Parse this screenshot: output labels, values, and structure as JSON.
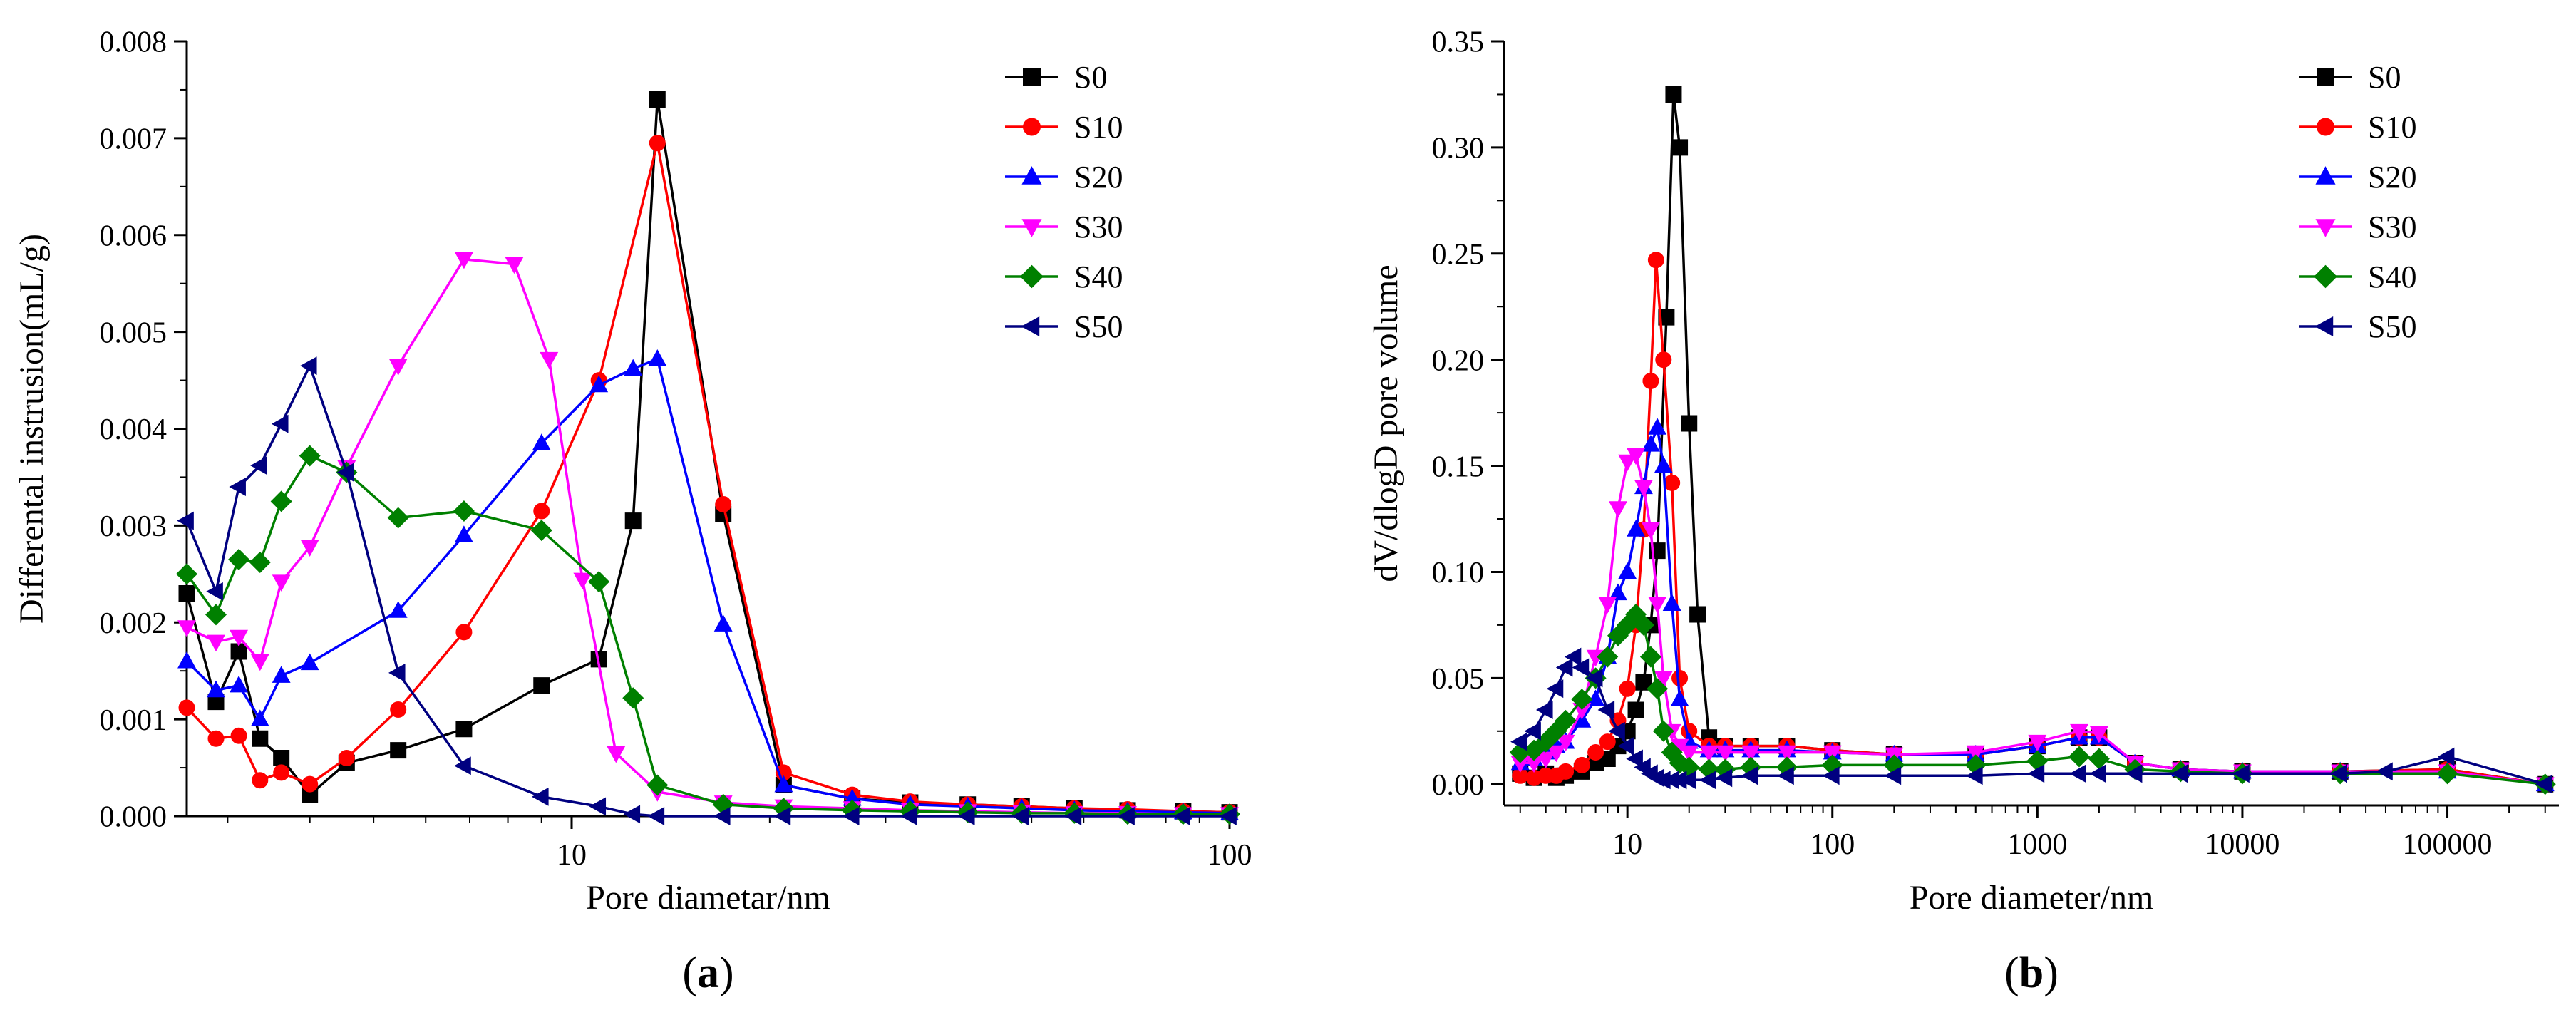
{
  "chart_data": [
    {
      "type": "line",
      "panel_label": "(a)",
      "panel_letter": "a",
      "xlabel": "Pore diametar/nm",
      "ylabel": "Differental instrusion(mL/g)",
      "xscale": "log",
      "xlim": [
        2.6,
        100
      ],
      "ylim": [
        0,
        0.008
      ],
      "xticks": [
        {
          "value": 10,
          "label": "10"
        },
        {
          "value": 100,
          "label": "100"
        }
      ],
      "yticks": [
        {
          "value": 0,
          "label": "0.000"
        },
        {
          "value": 0.001,
          "label": "0.001"
        },
        {
          "value": 0.002,
          "label": "0.002"
        },
        {
          "value": 0.003,
          "label": "0.003"
        },
        {
          "value": 0.004,
          "label": "0.004"
        },
        {
          "value": 0.005,
          "label": "0.005"
        },
        {
          "value": 0.006,
          "label": "0.006"
        },
        {
          "value": 0.007,
          "label": "0.007"
        },
        {
          "value": 0.008,
          "label": "0.008"
        }
      ],
      "legend_position": "top-right",
      "series": [
        {
          "name": "S0",
          "color": "#000000",
          "marker": "square",
          "x": [
            2.6,
            2.88,
            3.12,
            3.36,
            3.62,
            4.0,
            4.55,
            5.45,
            6.86,
            9.0,
            11.0,
            12.4,
            13.5,
            17.0,
            21.0,
            26.7,
            32.7,
            40.0,
            48.3,
            58.1,
            70.0,
            85.0,
            100.0
          ],
          "y": [
            0.0023,
            0.00118,
            0.0017,
            0.0008,
            0.0006,
            0.00022,
            0.00055,
            0.00068,
            0.0009,
            0.00135,
            0.00162,
            0.00305,
            0.0074,
            0.00312,
            0.00032,
            0.00018,
            0.00014,
            0.00012,
            0.0001,
            8e-05,
            6e-05,
            5e-05,
            4e-05
          ]
        },
        {
          "name": "S10",
          "color": "#ff0000",
          "marker": "circle",
          "x": [
            2.6,
            2.88,
            3.12,
            3.36,
            3.62,
            4.0,
            4.55,
            5.45,
            6.86,
            9.0,
            11.0,
            13.5,
            17.0,
            21.0,
            26.7,
            32.7,
            40.0,
            48.3,
            58.1,
            70.0,
            85.0,
            100.0
          ],
          "y": [
            0.00112,
            0.0008,
            0.00083,
            0.00037,
            0.00045,
            0.00033,
            0.0006,
            0.0011,
            0.0019,
            0.00315,
            0.0045,
            0.00695,
            0.00322,
            0.00045,
            0.00022,
            0.00015,
            0.00012,
            0.0001,
            8e-05,
            7e-05,
            5e-05,
            4e-05
          ]
        },
        {
          "name": "S20",
          "color": "#0000ff",
          "marker": "triangle-up",
          "x": [
            2.6,
            2.88,
            3.12,
            3.36,
            3.62,
            4.0,
            5.45,
            6.86,
            9.0,
            11.0,
            12.4,
            13.5,
            17.0,
            21.0,
            26.7,
            32.7,
            40.0,
            48.3,
            58.1,
            70.0,
            85.0,
            100.0
          ],
          "y": [
            0.0016,
            0.0013,
            0.00135,
            0.001,
            0.00145,
            0.00158,
            0.00212,
            0.0029,
            0.00385,
            0.00445,
            0.00462,
            0.00472,
            0.00198,
            0.00032,
            0.00018,
            0.00012,
            0.0001,
            8e-05,
            6e-05,
            5e-05,
            4e-05,
            3e-05
          ]
        },
        {
          "name": "S30",
          "color": "#ff00ff",
          "marker": "triangle-down",
          "x": [
            2.6,
            2.88,
            3.12,
            3.36,
            3.62,
            4.0,
            4.55,
            5.45,
            6.86,
            8.18,
            9.24,
            10.39,
            11.68,
            13.5,
            17.0,
            21.0,
            26.7,
            32.7,
            40.0,
            48.3,
            58.1,
            70.0,
            85.0,
            100.0
          ],
          "y": [
            0.00195,
            0.0018,
            0.00185,
            0.0016,
            0.00242,
            0.00278,
            0.0036,
            0.00465,
            0.00575,
            0.0057,
            0.00472,
            0.00244,
            0.00065,
            0.00025,
            0.00014,
            0.0001,
            8e-05,
            6e-05,
            5e-05,
            4e-05,
            3e-05,
            3e-05,
            2e-05,
            2e-05
          ]
        },
        {
          "name": "S40",
          "color": "#008000",
          "marker": "diamond",
          "x": [
            2.6,
            2.88,
            3.12,
            3.36,
            3.62,
            4.0,
            4.55,
            5.45,
            6.86,
            9.0,
            11.0,
            12.4,
            13.5,
            17.0,
            21.0,
            26.7,
            32.7,
            40.0,
            48.3,
            58.1,
            70.0,
            85.0,
            100.0
          ],
          "y": [
            0.0025,
            0.00208,
            0.00265,
            0.00262,
            0.00325,
            0.00372,
            0.00355,
            0.00308,
            0.00315,
            0.00295,
            0.00242,
            0.00122,
            0.00032,
            0.00012,
            8e-05,
            6e-05,
            5e-05,
            4e-05,
            3e-05,
            3e-05,
            2e-05,
            2e-05,
            2e-05
          ]
        },
        {
          "name": "S50",
          "color": "#000080",
          "marker": "triangle-left",
          "x": [
            2.6,
            2.88,
            3.12,
            3.36,
            3.62,
            4.0,
            4.55,
            5.45,
            6.86,
            9.0,
            11.0,
            12.4,
            13.5,
            17.0,
            21.0,
            26.7,
            32.7,
            40.0,
            48.3,
            58.1,
            70.0,
            85.0,
            100.0
          ],
          "y": [
            0.00305,
            0.00232,
            0.0034,
            0.00362,
            0.00405,
            0.00465,
            0.00355,
            0.00148,
            0.00052,
            0.0002,
            0.0001,
            2e-05,
            0.0,
            0.0,
            0.0,
            0.0,
            0.0,
            0.0,
            0.0,
            0.0,
            0.0,
            0.0,
            0.0
          ]
        }
      ]
    },
    {
      "type": "line",
      "panel_label": "(b)",
      "panel_letter": "b",
      "xlabel": "Pore diameter/nm",
      "ylabel": "dV/dlogD pore volume",
      "xscale": "log",
      "xlim": [
        2.5,
        350000
      ],
      "ylim": [
        -0.01,
        0.35
      ],
      "xticks": [
        {
          "value": 10,
          "label": "10"
        },
        {
          "value": 100,
          "label": "100"
        },
        {
          "value": 1000,
          "label": "1000"
        },
        {
          "value": 10000,
          "label": "10000"
        },
        {
          "value": 100000,
          "label": "100000"
        }
      ],
      "yticks": [
        {
          "value": 0,
          "label": "0.00"
        },
        {
          "value": 0.05,
          "label": "0.05"
        },
        {
          "value": 0.1,
          "label": "0.10"
        },
        {
          "value": 0.15,
          "label": "0.15"
        },
        {
          "value": 0.2,
          "label": "0.20"
        },
        {
          "value": 0.25,
          "label": "0.25"
        },
        {
          "value": 0.3,
          "label": "0.30"
        },
        {
          "value": 0.35,
          "label": "0.35"
        }
      ],
      "legend_position": "top-right",
      "series": [
        {
          "name": "S0",
          "color": "#000000",
          "marker": "square",
          "x": [
            3,
            3.5,
            4,
            4.5,
            5,
            6,
            7,
            8,
            9,
            10,
            11,
            12,
            13,
            14,
            15.5,
            16.8,
            18,
            20,
            22,
            25,
            30,
            40,
            60,
            100,
            200,
            500,
            1000,
            1600,
            2000,
            3000,
            5000,
            10000,
            30000,
            100000,
            300000
          ],
          "y": [
            0.005,
            0.003,
            0.005,
            0.003,
            0.004,
            0.006,
            0.01,
            0.012,
            0.018,
            0.025,
            0.035,
            0.048,
            0.075,
            0.11,
            0.22,
            0.325,
            0.3,
            0.17,
            0.08,
            0.022,
            0.018,
            0.018,
            0.018,
            0.016,
            0.014,
            0.014,
            0.018,
            0.022,
            0.022,
            0.01,
            0.007,
            0.006,
            0.006,
            0.007,
            0.0
          ]
        },
        {
          "name": "S10",
          "color": "#ff0000",
          "marker": "circle",
          "x": [
            3,
            3.5,
            4,
            4.5,
            5,
            6,
            7,
            8,
            9,
            10,
            11,
            12,
            13,
            13.8,
            15,
            16.5,
            18,
            20,
            25,
            30,
            40,
            60,
            100,
            200,
            500,
            1000,
            1600,
            2000,
            3000,
            5000,
            10000,
            30000,
            100000,
            300000
          ],
          "y": [
            0.004,
            0.003,
            0.004,
            0.004,
            0.006,
            0.009,
            0.015,
            0.02,
            0.03,
            0.045,
            0.075,
            0.12,
            0.19,
            0.247,
            0.2,
            0.142,
            0.05,
            0.025,
            0.018,
            0.018,
            0.018,
            0.018,
            0.016,
            0.014,
            0.014,
            0.018,
            0.022,
            0.022,
            0.01,
            0.007,
            0.006,
            0.006,
            0.007,
            0.0
          ]
        },
        {
          "name": "S20",
          "color": "#0000ff",
          "marker": "triangle-up",
          "x": [
            3,
            3.5,
            4,
            4.5,
            5,
            6,
            7,
            8,
            9,
            10,
            11,
            12,
            13,
            14,
            15,
            16.5,
            18,
            20,
            25,
            30,
            40,
            60,
            100,
            200,
            500,
            1000,
            1600,
            2000,
            3000,
            5000,
            10000,
            30000,
            100000,
            300000
          ],
          "y": [
            0.01,
            0.012,
            0.015,
            0.018,
            0.02,
            0.03,
            0.04,
            0.06,
            0.09,
            0.1,
            0.12,
            0.14,
            0.16,
            0.168,
            0.15,
            0.085,
            0.04,
            0.02,
            0.016,
            0.016,
            0.016,
            0.016,
            0.015,
            0.014,
            0.014,
            0.018,
            0.022,
            0.022,
            0.01,
            0.007,
            0.006,
            0.006,
            0.006,
            0.0
          ]
        },
        {
          "name": "S30",
          "color": "#ff00ff",
          "marker": "triangle-down",
          "x": [
            3,
            3.5,
            4,
            4.5,
            5,
            6,
            7,
            8,
            9,
            10,
            11,
            12,
            13,
            14,
            15,
            16.5,
            18,
            20,
            25,
            30,
            40,
            60,
            100,
            200,
            500,
            1000,
            1600,
            2000,
            3000,
            5000,
            10000,
            30000,
            100000,
            300000
          ],
          "y": [
            0.01,
            0.01,
            0.012,
            0.015,
            0.02,
            0.035,
            0.06,
            0.085,
            0.13,
            0.152,
            0.155,
            0.14,
            0.12,
            0.085,
            0.05,
            0.025,
            0.018,
            0.015,
            0.015,
            0.015,
            0.015,
            0.015,
            0.015,
            0.014,
            0.015,
            0.02,
            0.025,
            0.024,
            0.01,
            0.007,
            0.006,
            0.006,
            0.006,
            0.0
          ]
        },
        {
          "name": "S40",
          "color": "#008000",
          "marker": "diamond",
          "x": [
            3,
            3.5,
            4,
            4.5,
            5,
            6,
            7,
            8,
            9,
            10,
            11,
            12,
            13,
            14,
            15,
            16.5,
            18,
            20,
            25,
            30,
            40,
            60,
            100,
            200,
            500,
            1000,
            1600,
            2000,
            3000,
            5000,
            10000,
            30000,
            100000,
            300000
          ],
          "y": [
            0.015,
            0.016,
            0.02,
            0.025,
            0.03,
            0.04,
            0.05,
            0.06,
            0.07,
            0.075,
            0.08,
            0.075,
            0.06,
            0.045,
            0.025,
            0.015,
            0.01,
            0.008,
            0.007,
            0.007,
            0.008,
            0.008,
            0.009,
            0.009,
            0.009,
            0.011,
            0.013,
            0.012,
            0.007,
            0.006,
            0.005,
            0.005,
            0.005,
            0.0
          ]
        },
        {
          "name": "S50",
          "color": "#000080",
          "marker": "triangle-left",
          "x": [
            3,
            3.5,
            4,
            4.5,
            5,
            5.5,
            6,
            7,
            8,
            9,
            10,
            11,
            12,
            13,
            14,
            15,
            16.5,
            18,
            20,
            25,
            30,
            40,
            60,
            100,
            200,
            500,
            1000,
            1600,
            2000,
            3000,
            5000,
            10000,
            30000,
            50000,
            100000,
            300000
          ],
          "y": [
            0.02,
            0.025,
            0.035,
            0.045,
            0.055,
            0.06,
            0.055,
            0.05,
            0.035,
            0.025,
            0.018,
            0.012,
            0.008,
            0.005,
            0.003,
            0.002,
            0.002,
            0.002,
            0.002,
            0.002,
            0.003,
            0.004,
            0.004,
            0.004,
            0.004,
            0.004,
            0.005,
            0.005,
            0.005,
            0.005,
            0.005,
            0.005,
            0.005,
            0.006,
            0.013,
            0.0
          ]
        }
      ]
    }
  ]
}
